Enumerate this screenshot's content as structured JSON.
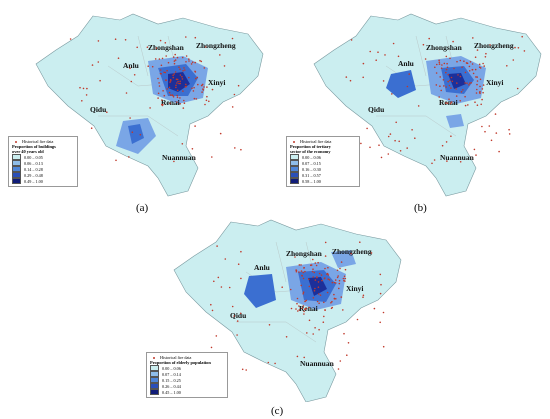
{
  "panels": [
    {
      "label": "(a)",
      "legend": {
        "points_label": "Historical fire data",
        "title_lines": [
          "Proportion of buildings",
          "over 40 years old"
        ],
        "classes": [
          "0.00 – 0.05",
          "0.06 – 0.13",
          "0.14 – 0.28",
          "0.29 – 0.48",
          "0.49 – 1.00"
        ]
      }
    },
    {
      "label": "(b)",
      "legend": {
        "points_label": "Historical fire data",
        "title_lines": [
          "Proportion of tertiary",
          "sector of the economy"
        ],
        "classes": [
          "0.00 – 0.06",
          "0.07 – 0.15",
          "0.16 – 0.30",
          "0.31 – 0.57",
          "0.58 – 1.00"
        ]
      }
    },
    {
      "label": "(c)",
      "legend": {
        "points_label": "Historical fire data",
        "title_lines": [
          "Proportion of elderly population"
        ],
        "classes": [
          "0.00 – 0.06",
          "0.07 – 0.14",
          "0.15 – 0.25",
          "0.26 – 0.44",
          "0.45 – 1.00"
        ]
      }
    }
  ],
  "district_names": {
    "anlu": "Anlu",
    "zhongshan": "Zhongshan",
    "zhongzheng": "Zhongzheng",
    "renai": "Renai",
    "xinyi": "Xinyi",
    "qidu": "Qidu",
    "nuannuan": "Nuannuan"
  },
  "colors": {
    "class1": "#cbeef0",
    "class2": "#8fbde9",
    "class3": "#4f86d8",
    "class4": "#2a4fb8",
    "class5": "#101c78",
    "fire_point": "#c0392b"
  }
}
